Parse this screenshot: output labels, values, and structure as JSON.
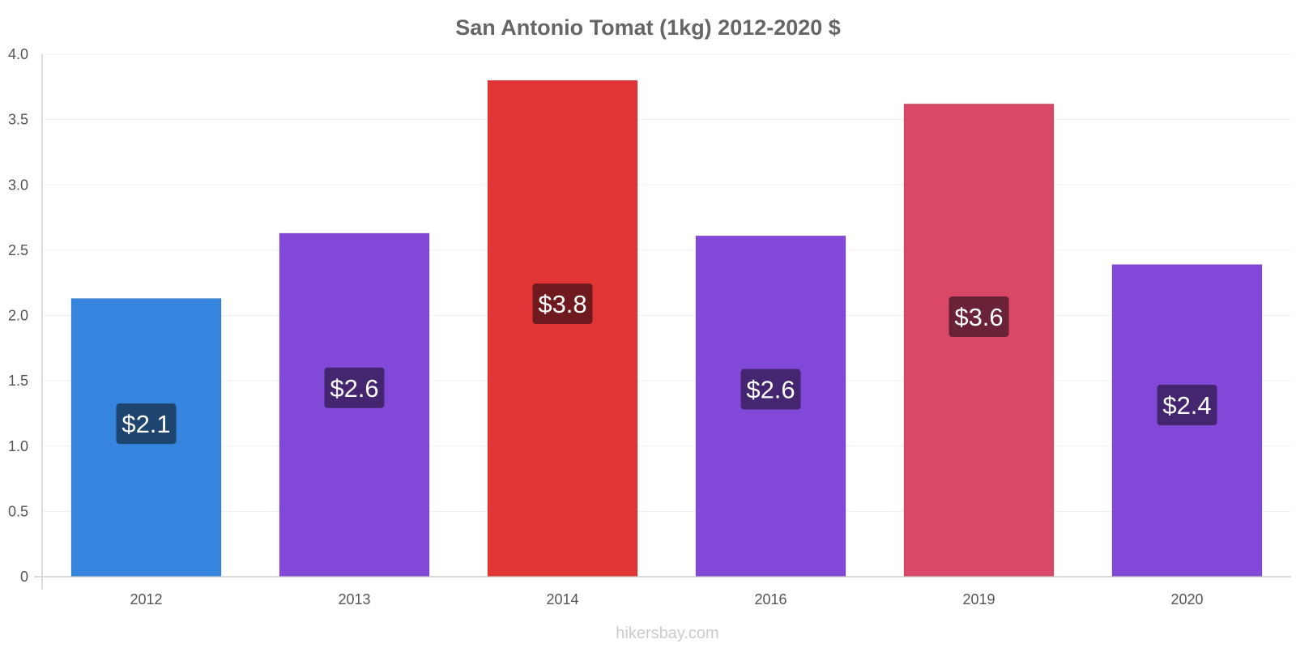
{
  "chart_data": {
    "type": "bar",
    "title": "San Antonio Tomat (1kg) 2012-2020 $",
    "categories": [
      "2012",
      "2013",
      "2014",
      "2016",
      "2019",
      "2020"
    ],
    "values": [
      2.13,
      2.63,
      3.8,
      2.61,
      3.62,
      2.39
    ],
    "value_labels": [
      "$2.1",
      "$2.6",
      "$3.8",
      "$2.6",
      "$3.6",
      "$2.4"
    ],
    "bar_colors": [
      "#3584DE",
      "#8249D9",
      "#E23535",
      "#8249D9",
      "#D94867",
      "#8249D9"
    ],
    "label_bg_colors": [
      "#1E4470",
      "#43266F",
      "#6E1A1E",
      "#43266F",
      "#6A2236",
      "#43266F"
    ],
    "ylim": [
      0,
      4.0
    ],
    "yticks": [
      0,
      0.5,
      1.0,
      1.5,
      2.0,
      2.5,
      3.0,
      3.5,
      4.0
    ],
    "ytick_labels": [
      "0",
      "0.5",
      "1.0",
      "1.5",
      "2.0",
      "2.5",
      "3.0",
      "3.5",
      "4.0"
    ],
    "grid": true,
    "legend": "none"
  },
  "footer": {
    "source": "hikersbay.com"
  }
}
